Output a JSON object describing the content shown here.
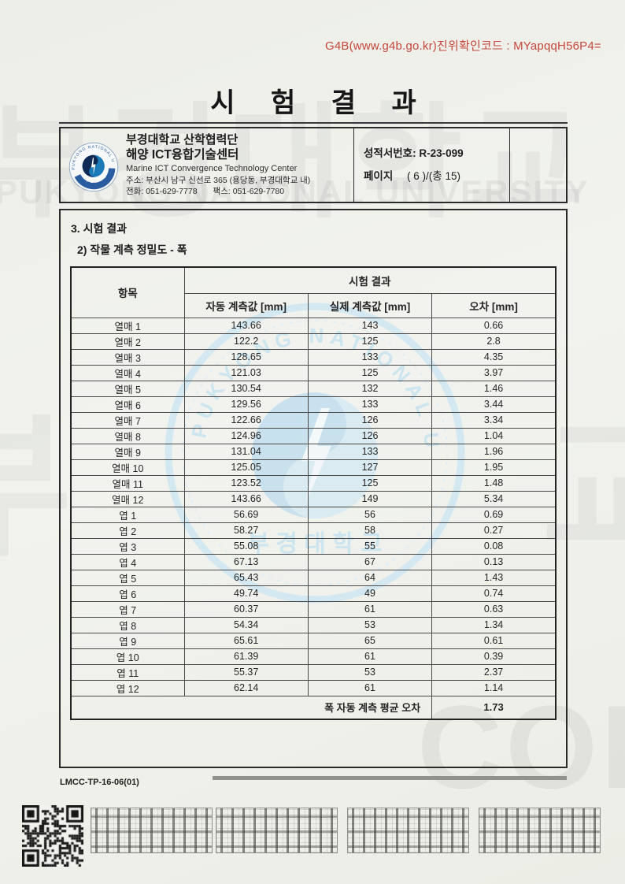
{
  "page": {
    "verification_code": "G4B(www.g4b.go.kr)진위확인코드 : MYapqqH56P4=",
    "title": "시 험 결 과",
    "form_code": "LMCC-TP-16-06(01)"
  },
  "header": {
    "org_line1": "부경대학교 산학협력단",
    "org_line2": "해양 ICT융합기술센터",
    "org_line3": "Marine ICT Convergence Technology Center",
    "address": "주소: 부산시 남구 신선로 365 (용당동, 부경대학교 내)",
    "phone": "전화: 051-629-7778",
    "fax": "팩스: 051-629-7780",
    "report_no_label": "성적서번호:",
    "report_no": "R-23-099",
    "page_label": "페이지",
    "page_value": "( 6 )/(총 15)"
  },
  "section": {
    "heading1": "3. 시험 결과",
    "heading2": "2) 작물 계측 정밀도 - 폭"
  },
  "table": {
    "col_item": "항목",
    "col_group": "시험 결과",
    "col_auto": "자동 계측값 [mm]",
    "col_actual": "실제 계측값 [mm]",
    "col_error": "오차 [mm]",
    "rows": [
      {
        "item": "열매 1",
        "auto": "143.66",
        "actual": "143",
        "error": "0.66"
      },
      {
        "item": "열매 2",
        "auto": "122.2",
        "actual": "125",
        "error": "2.8"
      },
      {
        "item": "열매 3",
        "auto": "128.65",
        "actual": "133",
        "error": "4.35"
      },
      {
        "item": "열매 4",
        "auto": "121.03",
        "actual": "125",
        "error": "3.97"
      },
      {
        "item": "열매 5",
        "auto": "130.54",
        "actual": "132",
        "error": "1.46"
      },
      {
        "item": "열매 6",
        "auto": "129.56",
        "actual": "133",
        "error": "3.44"
      },
      {
        "item": "열매 7",
        "auto": "122.66",
        "actual": "126",
        "error": "3.34"
      },
      {
        "item": "열매 8",
        "auto": "124.96",
        "actual": "126",
        "error": "1.04"
      },
      {
        "item": "열매 9",
        "auto": "131.04",
        "actual": "133",
        "error": "1.96"
      },
      {
        "item": "열매 10",
        "auto": "125.05",
        "actual": "127",
        "error": "1.95"
      },
      {
        "item": "열매 11",
        "auto": "123.52",
        "actual": "125",
        "error": "1.48"
      },
      {
        "item": "열매 12",
        "auto": "143.66",
        "actual": "149",
        "error": "5.34"
      },
      {
        "item": "엽 1",
        "auto": "56.69",
        "actual": "56",
        "error": "0.69"
      },
      {
        "item": "엽 2",
        "auto": "58.27",
        "actual": "58",
        "error": "0.27"
      },
      {
        "item": "엽 3",
        "auto": "55.08",
        "actual": "55",
        "error": "0.08"
      },
      {
        "item": "엽 4",
        "auto": "67.13",
        "actual": "67",
        "error": "0.13"
      },
      {
        "item": "엽 5",
        "auto": "65.43",
        "actual": "64",
        "error": "1.43"
      },
      {
        "item": "엽 6",
        "auto": "49.74",
        "actual": "49",
        "error": "0.74"
      },
      {
        "item": "엽 7",
        "auto": "60.37",
        "actual": "61",
        "error": "0.63"
      },
      {
        "item": "엽 8",
        "auto": "54.34",
        "actual": "53",
        "error": "1.34"
      },
      {
        "item": "엽 9",
        "auto": "65.61",
        "actual": "65",
        "error": "0.61"
      },
      {
        "item": "엽 10",
        "auto": "61.39",
        "actual": "61",
        "error": "0.39"
      },
      {
        "item": "엽 11",
        "auto": "55.37",
        "actual": "53",
        "error": "2.37"
      },
      {
        "item": "엽 12",
        "auto": "62.14",
        "actual": "61",
        "error": "1.14"
      }
    ],
    "footer_label": "폭 자동 계측 평균 오차",
    "footer_value": "1.73"
  },
  "watermarks": {
    "top_korean": "부경대학교",
    "top_english": "PUKYONG NATIONAL UNIVERSITY",
    "side_left": "부",
    "side_right": "교",
    "copy": "COPY",
    "seal_english": "PUKYONG NATIONAL UNIVERSITY",
    "seal_korean": "부 경 대 학 교"
  },
  "colors": {
    "verify_red": "#c5473a",
    "seal_blue_light": "#cfe7f2",
    "logo_navy": "#0e2a55",
    "logo_blue": "#1b7ab8"
  }
}
